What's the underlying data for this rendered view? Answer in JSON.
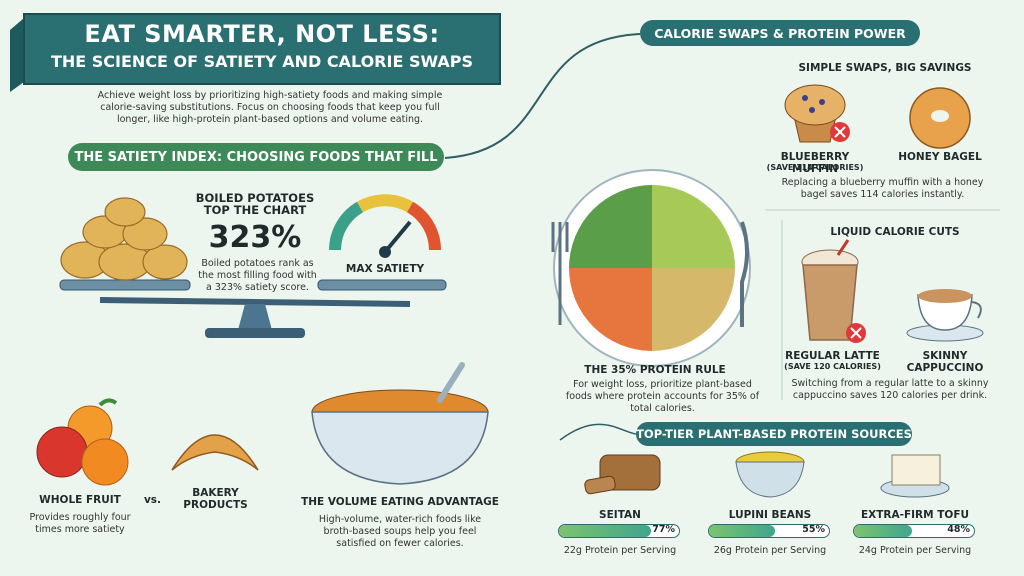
{
  "header": {
    "title_line1": "EAT SMARTER, NOT LESS:",
    "title_line2": "THE SCIENCE OF SATIETY AND CALORIE SWAPS",
    "intro": "Achieve weight loss by prioritizing high-satiety foods and making simple calorie-saving substitutions. Focus on choosing foods that keep you full longer, like high-protein plant-based options and volume eating."
  },
  "satiety": {
    "heading": "THE SATIETY INDEX: CHOOSING FOODS THAT FILL",
    "highlight_title": "BOILED POTATOES TOP THE CHART",
    "highlight_value": "323%",
    "highlight_text": "Boiled potatoes rank as the most filling food with a 323% satiety score.",
    "gauge_label": "MAX SATIETY"
  },
  "comparison": {
    "left_label": "WHOLE FRUIT",
    "left_text": "Provides roughly four times more satiety",
    "vs": "vs.",
    "right_label": "BAKERY PRODUCTS"
  },
  "volume": {
    "title": "THE VOLUME EATING ADVANTAGE",
    "text": "High-volume, water-rich foods like broth-based soups help you feel satisfied on fewer calories."
  },
  "right_section_title": "CALORIE SWAPS & PROTEIN POWER",
  "swaps": {
    "title": "SIMPLE SWAPS, BIG SAVINGS",
    "from_label": "BLUEBERRY MUFFIN",
    "from_note": "(SAVE 114 CALORIES)",
    "to_label": "HONEY BAGEL",
    "text": "Replacing a blueberry muffin with a honey bagel saves 114 calories instantly."
  },
  "protein_rule": {
    "title": "THE 35% PROTEIN RULE",
    "text": "For weight loss, prioritize plant-based foods where protein accounts for 35% of total calories."
  },
  "liquid": {
    "title": "LIQUID CALORIE CUTS",
    "from_label": "REGULAR LATTE",
    "from_note": "(SAVE 120 CALORIES)",
    "to_label": "SKINNY CAPPUCCINO",
    "text": "Switching from a regular latte to a skinny cappuccino saves 120 calories per drink."
  },
  "protein_sources": {
    "title": "TOP-TIER PLANT-BASED PROTEIN SOURCES",
    "items": [
      {
        "name": "SEITAN",
        "percent": 77,
        "percent_label": "77%",
        "protein": "22g Protein per Serving"
      },
      {
        "name": "LUPINI BEANS",
        "percent": 55,
        "percent_label": "55%",
        "protein": "26g Protein per Serving"
      },
      {
        "name": "EXTRA-FIRM TOFU",
        "percent": 48,
        "percent_label": "48%",
        "protein": "24g Protein per Serving"
      }
    ]
  }
}
